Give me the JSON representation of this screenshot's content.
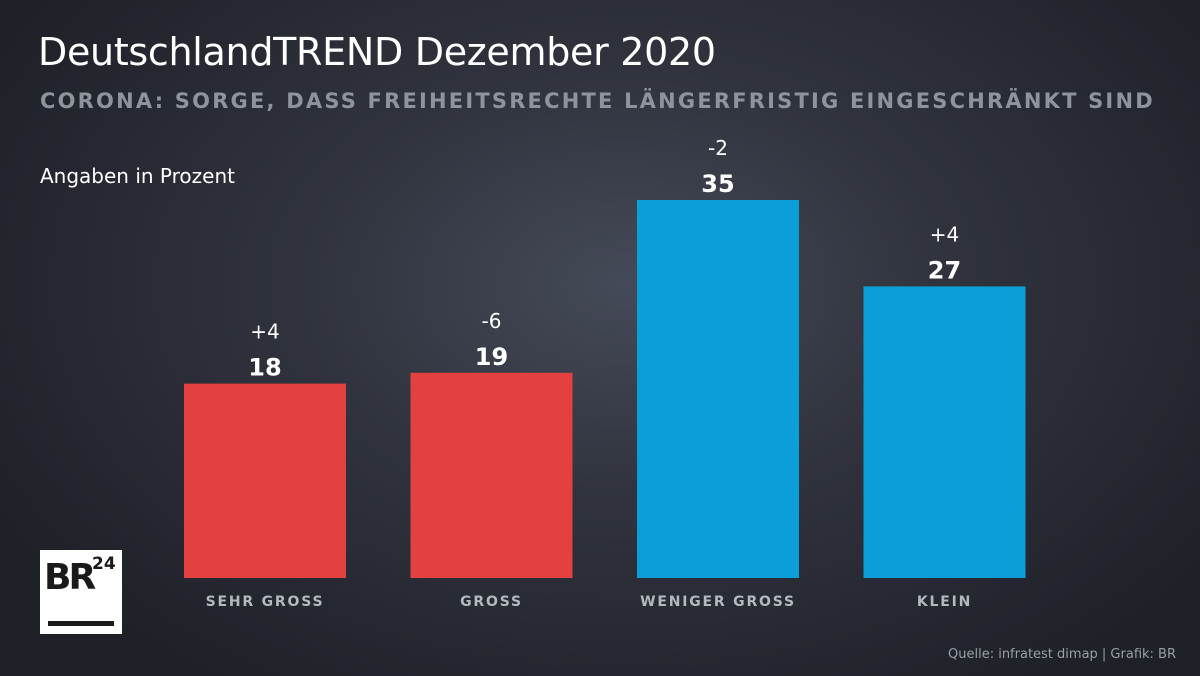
{
  "header": {
    "title": "DeutschlandTREND Dezember 2020",
    "subtitle": "CORONA: SORGE, DASS FREIHEITSRECHTE LÄNGERFRISTIG EINGESCHRÄNKT SIND",
    "unit_note": "Angaben in Prozent"
  },
  "logo": {
    "text": "BR",
    "superscript": "24"
  },
  "footer": {
    "source": "Quelle: infratest dimap | Grafik: BR"
  },
  "colors": {
    "red": "#e34140",
    "blue": "#0a9fd8"
  },
  "chart_data": {
    "type": "bar",
    "categories": [
      "SEHR GROSS",
      "GROSS",
      "WENIGER GROSS",
      "KLEIN"
    ],
    "values": [
      18,
      19,
      35,
      27
    ],
    "changes": [
      "+4",
      "-6",
      "-2",
      "+4"
    ],
    "bar_colors": [
      "#e34140",
      "#e34140",
      "#0a9fd8",
      "#0a9fd8"
    ],
    "ylim": [
      0,
      35
    ],
    "grid": false,
    "legend": "none"
  }
}
